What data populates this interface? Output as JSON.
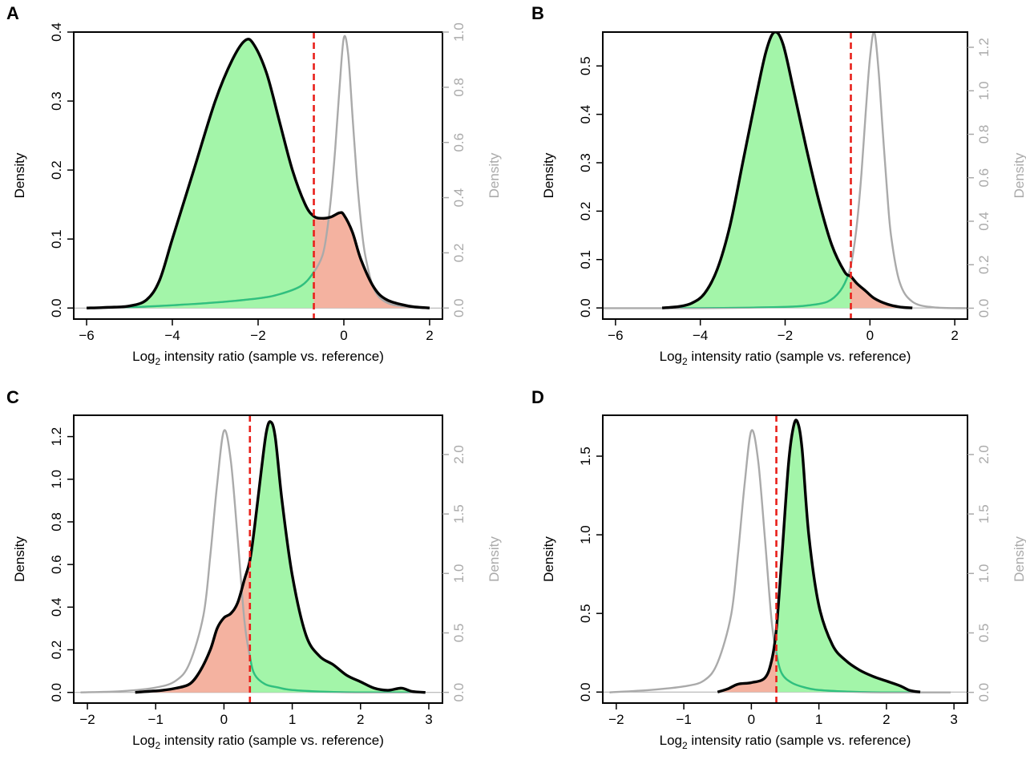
{
  "colors": {
    "sample_curve": "#000000",
    "reference_curve": "#aaaaaa",
    "green_fill": "#a3f5a9",
    "red_fill": "#f4b2a0",
    "green_line": "#2ec27e",
    "threshold": "#e8201a",
    "right_axis": "#aaaaaa"
  },
  "chart_data": [
    {
      "panel": "A",
      "type": "area",
      "xlabel": "Log2 intensity ratio (sample vs. reference)",
      "xlabel_main": "Log",
      "xlabel_sub": "2",
      "xlabel_rest": " intensity ratio (sample vs. reference)",
      "ylabel": "Density",
      "y2label": "Density",
      "xlim": [
        -6.3,
        2.3
      ],
      "ylim": [
        -0.016,
        0.4
      ],
      "y2lim": [
        -0.04,
        1.0
      ],
      "xticks": [
        -6,
        -4,
        -2,
        0,
        2
      ],
      "xtick_labels": [
        "−6",
        "−4",
        "−2",
        "0",
        "2"
      ],
      "yticks": [
        0.0,
        0.1,
        0.2,
        0.3,
        0.4
      ],
      "ytick_labels": [
        "0.0",
        "0.1",
        "0.2",
        "0.3",
        "0.4"
      ],
      "y2ticks": [
        0.0,
        0.2,
        0.4,
        0.6,
        0.8,
        1.0
      ],
      "y2tick_labels": [
        "0.0",
        "0.2",
        "0.4",
        "0.6",
        "0.8",
        "1.0"
      ],
      "threshold": -0.7,
      "left_fill": "green",
      "right_fill": "red",
      "series": [
        {
          "name": "",
          "role": "sample",
          "x": [
            -6.0,
            -5.5,
            -5.0,
            -4.6,
            -4.3,
            -4.0,
            -3.5,
            -3.0,
            -2.6,
            -2.3,
            -2.1,
            -1.8,
            -1.5,
            -1.2,
            -0.9,
            -0.7,
            -0.5,
            -0.3,
            -0.1,
            0.0,
            0.2,
            0.4,
            0.7,
            1.0,
            1.5,
            2.0
          ],
          "y": [
            0.0,
            0.001,
            0.003,
            0.012,
            0.04,
            0.1,
            0.2,
            0.3,
            0.36,
            0.388,
            0.382,
            0.34,
            0.27,
            0.2,
            0.15,
            0.133,
            0.13,
            0.132,
            0.138,
            0.135,
            0.11,
            0.07,
            0.03,
            0.012,
            0.003,
            0.0
          ]
        },
        {
          "name": "",
          "role": "reference",
          "x": [
            -6.0,
            -5.0,
            -4.0,
            -3.0,
            -2.0,
            -1.5,
            -1.0,
            -0.7,
            -0.5,
            -0.4,
            -0.3,
            -0.2,
            -0.1,
            0.0,
            0.1,
            0.2,
            0.3,
            0.4,
            0.5,
            0.7,
            1.0,
            1.5,
            2.0
          ],
          "y": [
            0.0,
            0.003,
            0.01,
            0.02,
            0.035,
            0.05,
            0.08,
            0.13,
            0.19,
            0.27,
            0.4,
            0.58,
            0.8,
            0.98,
            0.92,
            0.7,
            0.48,
            0.31,
            0.19,
            0.07,
            0.02,
            0.004,
            0.0
          ]
        }
      ]
    },
    {
      "panel": "B",
      "type": "area",
      "xlabel": "Log2 intensity ratio (sample vs. reference)",
      "xlabel_main": "Log",
      "xlabel_sub": "2",
      "xlabel_rest": " intensity ratio (sample vs. reference)",
      "ylabel": "Density",
      "y2label": "Density",
      "xlim": [
        -6.3,
        2.3
      ],
      "ylim": [
        -0.023,
        0.57
      ],
      "y2lim": [
        -0.05,
        1.27
      ],
      "xticks": [
        -6,
        -4,
        -2,
        0,
        2
      ],
      "xtick_labels": [
        "−6",
        "−4",
        "−2",
        "0",
        "2"
      ],
      "yticks": [
        0.0,
        0.1,
        0.2,
        0.3,
        0.4,
        0.5
      ],
      "ytick_labels": [
        "0.0",
        "0.1",
        "0.2",
        "0.3",
        "0.4",
        "0.5"
      ],
      "y2ticks": [
        0.0,
        0.2,
        0.4,
        0.6,
        0.8,
        1.0,
        1.2
      ],
      "y2tick_labels": [
        "0.0",
        "0.2",
        "0.4",
        "0.6",
        "0.8",
        "1.0",
        "1.2"
      ],
      "threshold": -0.45,
      "left_fill": "green",
      "right_fill": "red",
      "series": [
        {
          "name": "",
          "role": "sample",
          "x": [
            -4.9,
            -4.5,
            -4.2,
            -3.9,
            -3.6,
            -3.3,
            -3.0,
            -2.7,
            -2.45,
            -2.25,
            -2.05,
            -1.8,
            -1.5,
            -1.2,
            -0.9,
            -0.6,
            -0.45,
            -0.3,
            -0.1,
            0.1,
            0.4,
            0.7,
            1.0
          ],
          "y": [
            0.0,
            0.003,
            0.01,
            0.03,
            0.08,
            0.17,
            0.3,
            0.43,
            0.53,
            0.57,
            0.545,
            0.45,
            0.33,
            0.22,
            0.13,
            0.075,
            0.065,
            0.05,
            0.035,
            0.02,
            0.008,
            0.002,
            0.0
          ]
        },
        {
          "name": "",
          "role": "reference",
          "x": [
            -6.4,
            -5.0,
            -4.0,
            -3.0,
            -2.0,
            -1.5,
            -1.0,
            -0.7,
            -0.5,
            -0.4,
            -0.3,
            -0.2,
            -0.1,
            0.0,
            0.1,
            0.2,
            0.3,
            0.4,
            0.5,
            0.7,
            1.0,
            1.5,
            2.3
          ],
          "y": [
            0.0,
            0.0,
            0.0,
            0.002,
            0.006,
            0.012,
            0.03,
            0.08,
            0.16,
            0.25,
            0.4,
            0.62,
            0.9,
            1.15,
            1.27,
            1.1,
            0.82,
            0.55,
            0.33,
            0.12,
            0.03,
            0.004,
            0.0
          ]
        }
      ]
    },
    {
      "panel": "C",
      "type": "area",
      "xlabel": "Log2 intensity ratio (sample vs. reference)",
      "xlabel_main": "Log",
      "xlabel_sub": "2",
      "xlabel_rest": " intensity ratio (sample vs. reference)",
      "ylabel": "Density",
      "y2label": "Density",
      "xlim": [
        -2.2,
        3.2
      ],
      "ylim": [
        -0.05,
        1.3
      ],
      "y2lim": [
        -0.09,
        2.33
      ],
      "xticks": [
        -2,
        -1,
        0,
        1,
        2,
        3
      ],
      "xtick_labels": [
        "−2",
        "−1",
        "0",
        "1",
        "2",
        "3"
      ],
      "yticks": [
        0.0,
        0.2,
        0.4,
        0.6,
        0.8,
        1.0,
        1.2
      ],
      "ytick_labels": [
        "0.0",
        "0.2",
        "0.4",
        "0.6",
        "0.8",
        "1.0",
        "1.2"
      ],
      "y2ticks": [
        0.0,
        0.5,
        1.0,
        1.5,
        2.0
      ],
      "y2tick_labels": [
        "0.0",
        "0.5",
        "1.0",
        "1.5",
        "2.0"
      ],
      "threshold": 0.38,
      "left_fill": "red",
      "right_fill": "green",
      "series": [
        {
          "name": "",
          "role": "sample",
          "x": [
            -1.3,
            -1.1,
            -0.9,
            -0.7,
            -0.5,
            -0.35,
            -0.2,
            -0.1,
            0.0,
            0.1,
            0.2,
            0.3,
            0.38,
            0.45,
            0.55,
            0.62,
            0.68,
            0.75,
            0.85,
            1.0,
            1.2,
            1.4,
            1.6,
            1.8,
            2.0,
            2.2,
            2.4,
            2.6,
            2.75,
            2.95
          ],
          "y": [
            0.0,
            0.005,
            0.01,
            0.02,
            0.04,
            0.1,
            0.2,
            0.3,
            0.35,
            0.37,
            0.42,
            0.53,
            0.62,
            0.78,
            1.05,
            1.22,
            1.27,
            1.2,
            0.9,
            0.55,
            0.27,
            0.17,
            0.13,
            0.08,
            0.05,
            0.02,
            0.01,
            0.02,
            0.005,
            0.0
          ]
        },
        {
          "name": "",
          "role": "reference",
          "x": [
            -2.1,
            -1.5,
            -1.0,
            -0.7,
            -0.5,
            -0.3,
            -0.2,
            -0.1,
            0.0,
            0.1,
            0.2,
            0.3,
            0.38,
            0.45,
            0.6,
            0.8,
            1.0,
            1.5,
            2.0,
            2.95
          ],
          "y": [
            0.0,
            0.01,
            0.04,
            0.1,
            0.25,
            0.65,
            1.15,
            1.75,
            2.2,
            1.95,
            1.3,
            0.6,
            0.3,
            0.15,
            0.07,
            0.04,
            0.02,
            0.005,
            0.0,
            0.0
          ]
        }
      ]
    },
    {
      "panel": "D",
      "type": "area",
      "xlabel": "Log2 intensity ratio (sample vs. reference)",
      "xlabel_main": "Log",
      "xlabel_sub": "2",
      "xlabel_rest": " intensity ratio (sample vs. reference)",
      "ylabel": "Density",
      "y2label": "Density",
      "xlim": [
        -2.2,
        3.2
      ],
      "ylim": [
        -0.07,
        1.76
      ],
      "y2lim": [
        -0.09,
        2.33
      ],
      "xticks": [
        -2,
        -1,
        0,
        1,
        2,
        3
      ],
      "xtick_labels": [
        "−2",
        "−1",
        "0",
        "1",
        "2",
        "3"
      ],
      "yticks": [
        0.0,
        0.5,
        1.0,
        1.5
      ],
      "ytick_labels": [
        "0.0",
        "0.5",
        "1.0",
        "1.5"
      ],
      "y2ticks": [
        0.0,
        0.5,
        1.0,
        1.5,
        2.0
      ],
      "y2tick_labels": [
        "0.0",
        "0.5",
        "1.0",
        "1.5",
        "2.0"
      ],
      "threshold": 0.37,
      "left_fill": "red",
      "right_fill": "green",
      "series": [
        {
          "name": "",
          "role": "sample",
          "x": [
            -0.5,
            -0.35,
            -0.2,
            0.0,
            0.2,
            0.3,
            0.37,
            0.45,
            0.55,
            0.62,
            0.68,
            0.75,
            0.85,
            1.0,
            1.2,
            1.4,
            1.6,
            1.8,
            2.0,
            2.2,
            2.35,
            2.5
          ],
          "y": [
            0.0,
            0.02,
            0.05,
            0.06,
            0.09,
            0.2,
            0.4,
            0.85,
            1.45,
            1.68,
            1.72,
            1.55,
            1.0,
            0.55,
            0.3,
            0.2,
            0.14,
            0.1,
            0.07,
            0.04,
            0.01,
            0.0
          ]
        },
        {
          "name": "",
          "role": "reference",
          "x": [
            -2.1,
            -1.5,
            -1.0,
            -0.7,
            -0.5,
            -0.3,
            -0.2,
            -0.1,
            0.0,
            0.1,
            0.2,
            0.3,
            0.37,
            0.45,
            0.6,
            0.8,
            1.0,
            1.5,
            2.0,
            2.95
          ],
          "y": [
            0.0,
            0.02,
            0.05,
            0.1,
            0.25,
            0.65,
            1.15,
            1.75,
            2.2,
            1.95,
            1.3,
            0.6,
            0.33,
            0.16,
            0.08,
            0.04,
            0.02,
            0.005,
            0.0,
            0.0
          ]
        }
      ]
    }
  ]
}
